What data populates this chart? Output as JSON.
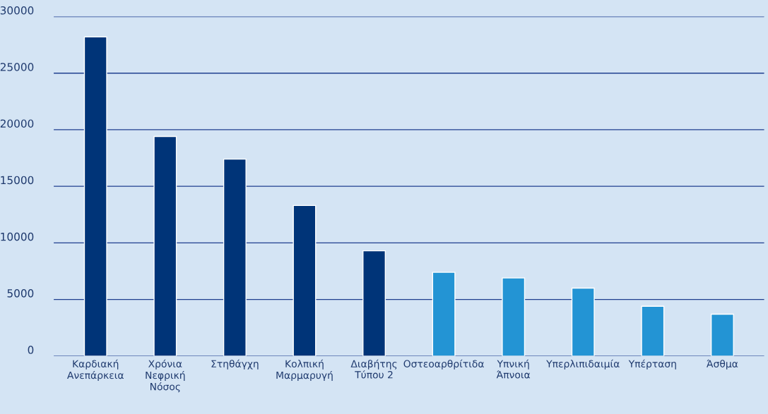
{
  "chart_data": {
    "type": "bar",
    "categories": [
      "Καρδιακή\nΑνεπάρκεια",
      "Χρόνια\nΝεφρική\nΝόσος",
      "Στηθάγχη",
      "Κολπική\nΜαρμαρυγή",
      "Διαβήτης\nΤύπου 2",
      "Οστεοαρθρίτιδα",
      "Υπνική\nΆπνοια",
      "Υπερλιπιδαιμία",
      "Υπέρταση",
      "Άσθμα"
    ],
    "values": [
      28200,
      19400,
      17400,
      13300,
      9300,
      7400,
      6900,
      6000,
      4400,
      3700
    ],
    "colors": [
      "#003478",
      "#003478",
      "#003478",
      "#003478",
      "#003478",
      "#2394d4",
      "#2394d4",
      "#2394d4",
      "#2394d4",
      "#2394d4"
    ],
    "ylim": [
      0,
      30000
    ],
    "yticks": [
      0,
      5000,
      10000,
      15000,
      20000,
      25000,
      30000
    ],
    "grid": "y",
    "legend": false
  }
}
